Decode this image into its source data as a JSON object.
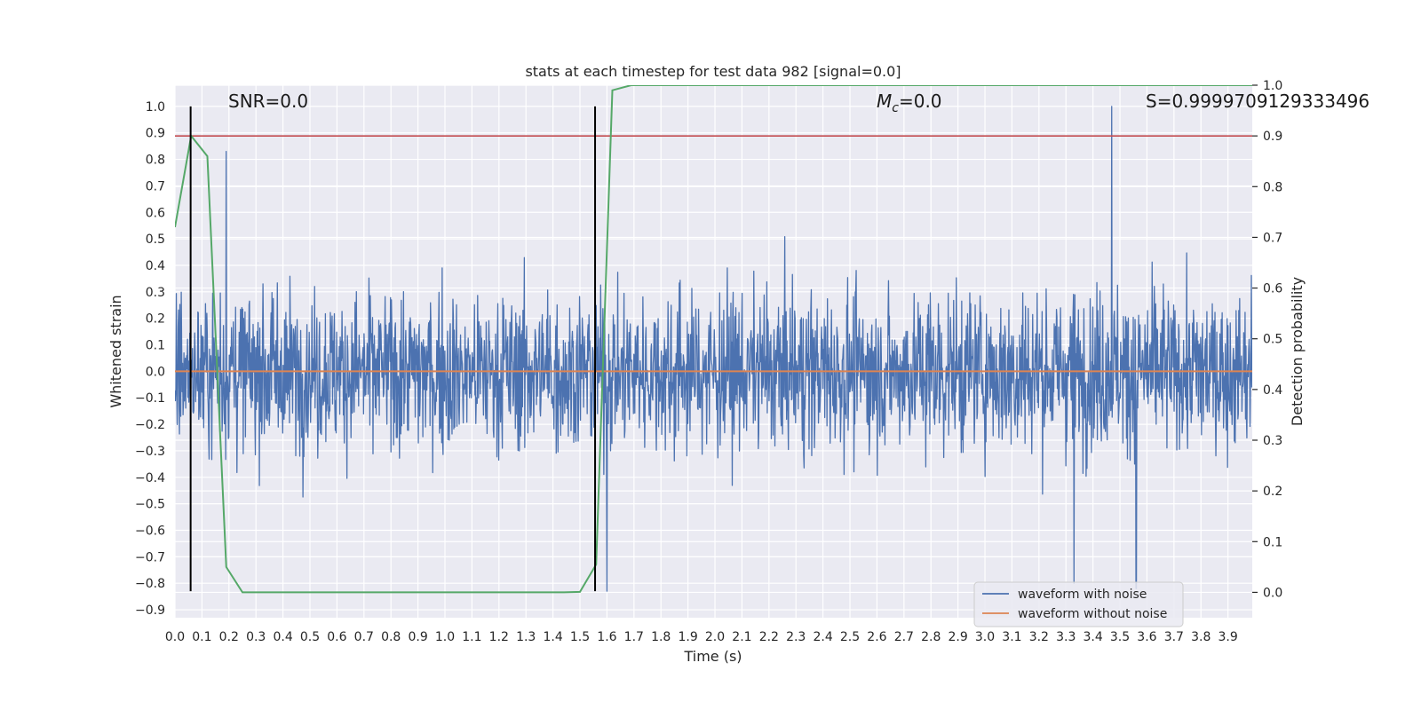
{
  "chart_data": {
    "type": "line",
    "title": "stats at each timestep for test data 982 [signal=0.0]",
    "xlabel": "Time (s)",
    "ylabel": "Whitened strain",
    "y2label": "Detection probability",
    "xlim": [
      0.0,
      3.99
    ],
    "ylim": [
      -0.93,
      1.08
    ],
    "y2lim": [
      -0.05,
      1.0
    ],
    "x_ticks": [
      0.0,
      0.1,
      0.2,
      0.3,
      0.4,
      0.5,
      0.6,
      0.7,
      0.8,
      0.9,
      1.0,
      1.1,
      1.2,
      1.3,
      1.4,
      1.5,
      1.6,
      1.7,
      1.8,
      1.9,
      2.0,
      2.1,
      2.2,
      2.3,
      2.4,
      2.5,
      2.6,
      2.7,
      2.8,
      2.9,
      3.0,
      3.1,
      3.2,
      3.3,
      3.4,
      3.5,
      3.6,
      3.7,
      3.8,
      3.9
    ],
    "x_tick_labels": [
      "0.0",
      "0.1",
      "0.2",
      "0.3",
      "0.4",
      "0.5",
      "0.6",
      "0.7",
      "0.8",
      "0.9",
      "1.0",
      "1.1",
      "1.2",
      "1.3",
      "1.4",
      "1.5",
      "1.6",
      "1.7",
      "1.8",
      "1.9",
      "2.0",
      "2.1",
      "2.2",
      "2.3",
      "2.4",
      "2.5",
      "2.6",
      "2.7",
      "2.8",
      "2.9",
      "3.0",
      "3.1",
      "3.2",
      "3.3",
      "3.4",
      "3.5",
      "3.6",
      "3.7",
      "3.8",
      "3.9"
    ],
    "y_ticks": [
      1.0,
      0.9,
      0.8,
      0.7,
      0.6,
      0.5,
      0.4,
      0.3,
      0.2,
      0.1,
      0.0,
      -0.1,
      -0.2,
      -0.3,
      -0.4,
      -0.5,
      -0.6,
      -0.7,
      -0.8,
      -0.9
    ],
    "y_tick_labels": [
      "1.0",
      "0.9",
      "0.8",
      "0.7",
      "0.6",
      "0.5",
      "0.4",
      "0.3",
      "0.2",
      "0.1",
      "0.0",
      "−0.1",
      "−0.2",
      "−0.3",
      "−0.4",
      "−0.5",
      "−0.6",
      "−0.7",
      "−0.8",
      "−0.9"
    ],
    "y2_ticks": [
      1.0,
      0.9,
      0.8,
      0.7,
      0.6,
      0.5,
      0.4,
      0.3,
      0.2,
      0.1,
      0.0
    ],
    "y2_tick_labels": [
      "1.0",
      "0.9",
      "0.8",
      "0.7",
      "0.6",
      "0.5",
      "0.4",
      "0.3",
      "0.2",
      "0.1",
      "0.0"
    ],
    "annotations": {
      "snr": "SNR=0.0",
      "mc_symbol": "M",
      "mc_sub": "c",
      "mc_value": "=0.0",
      "s_value": "S=0.9999709129333496"
    },
    "legend": {
      "position": "lower-right",
      "entries": [
        "waveform with noise",
        "waveform without noise"
      ]
    },
    "series": [
      {
        "name": "waveform with noise",
        "axis": "left",
        "color": "#4c72b0",
        "note": "dense Gaussian-like noise, roughly within -0.83..1.0 whitened strain",
        "noise_scale": 0.2,
        "min": -0.83,
        "max": 1.0,
        "spikes": [
          [
            0.19,
            0.83
          ],
          [
            3.47,
            1.0
          ],
          [
            1.6,
            -0.83
          ],
          [
            3.33,
            -0.8
          ],
          [
            3.56,
            -0.82
          ]
        ]
      },
      {
        "name": "waveform without noise",
        "axis": "left",
        "color": "#dd8452",
        "x": [
          0.0,
          3.99
        ],
        "y": [
          0.0,
          0.0
        ]
      },
      {
        "name": "detection probability",
        "axis": "right",
        "color": "#55a868",
        "x": [
          0.0,
          0.06,
          0.12,
          0.19,
          0.25,
          0.5,
          1.0,
          1.44,
          1.5,
          1.56,
          1.62,
          1.69,
          2.0,
          3.0,
          3.99
        ],
        "y": [
          0.72,
          0.9,
          0.86,
          0.05,
          0.0,
          0.0,
          0.0,
          0.0,
          0.001,
          0.055,
          0.99,
          1.0,
          1.0,
          1.0,
          1.0
        ]
      },
      {
        "name": "threshold",
        "axis": "right",
        "color": "#c44e52",
        "x": [
          0.0,
          3.99
        ],
        "y": [
          0.9,
          0.9
        ]
      }
    ],
    "vertical_markers": [
      {
        "name": "window-start",
        "x": 0.058,
        "y_from": -0.83,
        "y_to": 1.0,
        "color": "#000000"
      },
      {
        "name": "window-end",
        "x": 1.556,
        "y_from": -0.83,
        "y_to": 1.0,
        "color": "#000000"
      }
    ],
    "grid": true,
    "background": "#eaeaf2"
  }
}
